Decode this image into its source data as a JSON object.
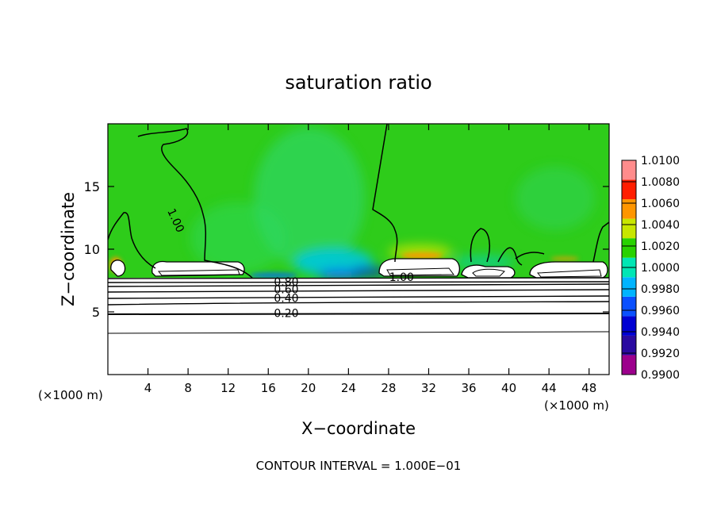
{
  "chart_data": {
    "type": "heatmap",
    "title": "saturation ratio",
    "xlabel": "X−coordinate",
    "ylabel": "Z−coordinate",
    "x_unit_label_left": "(×1000 m)",
    "x_unit_label_right": "(×1000 m)",
    "xlim": [
      0,
      50
    ],
    "ylim": [
      0,
      20
    ],
    "x_ticks": [
      4,
      8,
      12,
      16,
      20,
      24,
      28,
      32,
      36,
      40,
      44,
      48
    ],
    "x_tick_labels": [
      "4",
      "8",
      "12",
      "16",
      "20",
      "24",
      "28",
      "32",
      "36",
      "40",
      "44",
      "48"
    ],
    "y_ticks": [
      5,
      10,
      15
    ],
    "y_tick_labels": [
      "5",
      "10",
      "15"
    ],
    "footer": "CONTOUR INTERVAL = 1.000E−01",
    "colorbar": {
      "min": 0.99,
      "max": 1.01,
      "labels": [
        "1.0100",
        "1.0080",
        "1.0060",
        "1.0040",
        "1.0020",
        "1.0000",
        "0.9980",
        "0.9960",
        "0.9940",
        "0.9920",
        "0.9900"
      ],
      "colors": [
        "#9c008c",
        "#2a0aa0",
        "#0000d2",
        "#0a50ff",
        "#00b4ff",
        "#00e6b4",
        "#28d200",
        "#c8e600",
        "#ff9600",
        "#ff1e00",
        "#ff8c8c"
      ]
    },
    "contour_labels": [
      {
        "text": "1.00",
        "x": 6.8,
        "z": 12.3
      },
      {
        "text": "1.00",
        "x": 29.3,
        "z": 7.8
      },
      {
        "text": "0.80",
        "x": 17.8,
        "z": 7.4
      },
      {
        "text": "0.60",
        "x": 17.8,
        "z": 6.8
      },
      {
        "text": "0.40",
        "x": 17.8,
        "z": 6.1
      },
      {
        "text": "0.20",
        "x": 17.8,
        "z": 4.9
      }
    ]
  }
}
